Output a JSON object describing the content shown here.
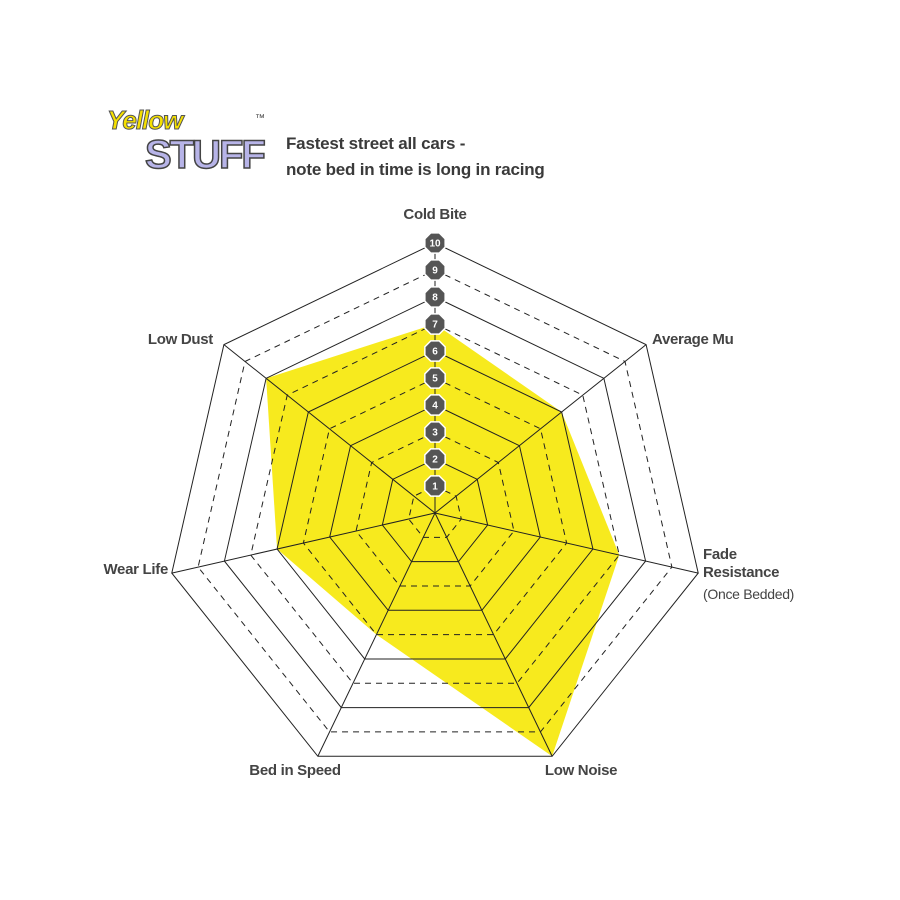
{
  "brand": {
    "line1": "Yellow",
    "line2": "STUFF",
    "mark": "™"
  },
  "chart_data": {
    "type": "radar",
    "subtitle": [
      "Fastest street all cars -",
      "note bed in time is long in racing"
    ],
    "categories": [
      "Cold Bite",
      "Average Mu",
      "Fade\nResistance",
      "Low Noise",
      "Bed in Speed",
      "Wear Life",
      "Low Dust"
    ],
    "annotation": "(Once Bedded)",
    "values": [
      7,
      6,
      7,
      10,
      5,
      6,
      8
    ],
    "color": "#f7ea1e",
    "rlim": [
      0,
      10
    ],
    "rticks": [
      1,
      2,
      3,
      4,
      5,
      6,
      7,
      8,
      9,
      10
    ],
    "grid": true
  }
}
